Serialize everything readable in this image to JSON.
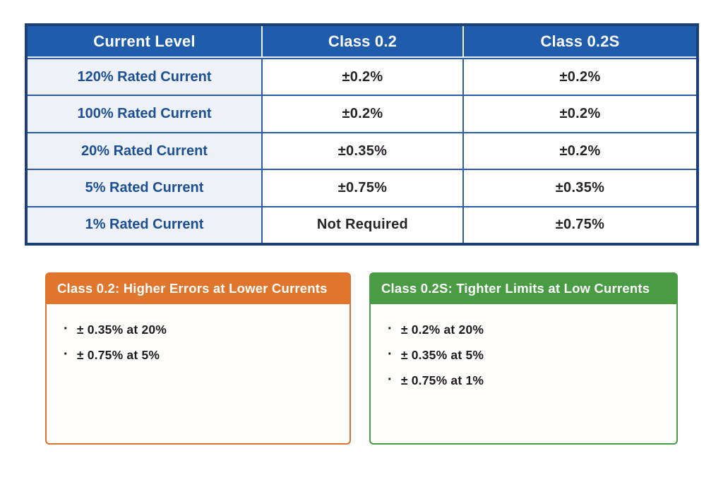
{
  "chart_data": {
    "type": "table",
    "title": "",
    "columns": [
      "Current Level",
      "Class 0.2",
      "Class 0.2S"
    ],
    "rows": [
      [
        "120% Rated Current",
        "±0.2%",
        "±0.2%"
      ],
      [
        "100% Rated Current",
        "±0.2%",
        "±0.2%"
      ],
      [
        "20% Rated Current",
        "±0.35%",
        "±0.2%"
      ],
      [
        "5% Rated Current",
        "±0.75%",
        "±0.35%"
      ],
      [
        "1% Rated Current",
        "Not Required",
        "±0.75%"
      ]
    ],
    "annotations": [
      "Class 0.2: Higher Errors at Lower Currents — ± 0.35% at 20%; ± 0.75% at 5%",
      "Class 0.2S: Tighter Limits at Low Currents — ± 0.2% at 20%; ± 0.35% at 5%; ± 0.75% at 1%"
    ]
  },
  "table": {
    "headers": [
      "Current Level",
      "Class 0.2",
      "Class 0.2S"
    ],
    "rows": [
      {
        "label": "120% Rated Current",
        "class02": "±0.2%",
        "class02s": "±0.2%"
      },
      {
        "label": "100% Rated Current",
        "class02": "±0.2%",
        "class02s": "±0.2%"
      },
      {
        "label": "20% Rated Current",
        "class02": "±0.35%",
        "class02s": "±0.2%"
      },
      {
        "label": "5% Rated Current",
        "class02": "±0.75%",
        "class02s": "±0.35%"
      },
      {
        "label": "1% Rated Current",
        "class02": "Not Required",
        "class02s": "±0.75%"
      }
    ]
  },
  "callouts": {
    "left": {
      "title": "Class 0.2: Higher Errors at Lower Currents",
      "bullet_glyph": "·",
      "items": [
        "± 0.35% at 20%",
        "± 0.75% at 5%"
      ],
      "accent_color": "#e0752c"
    },
    "right": {
      "title": "Class 0.2S: Tighter Limits at Low Currents",
      "bullet_glyph": "·",
      "items": [
        "± 0.2% at 20%",
        "± 0.35% at 5%",
        "± 0.75% at 1%"
      ],
      "accent_color": "#4a9c44"
    }
  },
  "colors": {
    "table_header_bg": "#1f5cab",
    "table_outer_border": "#1b4078",
    "table_inner_border": "#2b5ca6",
    "row_label_bg": "#eef1f7",
    "row_label_text": "#1c4f93",
    "value_text": "#272329",
    "callout_left_accent": "#e0752c",
    "callout_right_accent": "#4a9c44",
    "background": "#ffffff"
  }
}
